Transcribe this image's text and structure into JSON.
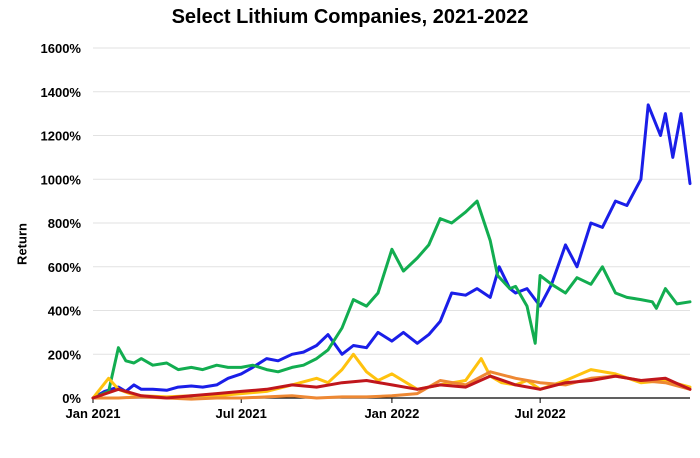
{
  "chart_data": {
    "type": "line",
    "title": "Select Lithium Companies, 2021-2022",
    "xlabel": "",
    "ylabel": "Return",
    "xlim": [
      "2021-01-01",
      "2022-12-31"
    ],
    "ylim": [
      0,
      1600
    ],
    "y_unit": "%",
    "y_ticks": [
      "0%",
      "200%",
      "400%",
      "600%",
      "800%",
      "1000%",
      "1200%",
      "1400%",
      "1600%"
    ],
    "x_ticks": [
      {
        "date": "2021-01-01",
        "label": "Jan 2021"
      },
      {
        "date": "2021-07-01",
        "label": "Jul 2021"
      },
      {
        "date": "2022-01-01",
        "label": "Jan 2022"
      },
      {
        "date": "2022-07-01",
        "label": "Jul 2022"
      }
    ],
    "grid": {
      "horizontal": true,
      "vertical": false
    },
    "legend": "none",
    "series": [
      {
        "color": "#1a1ee8",
        "x": [
          "2021-01-01",
          "2021-01-15",
          "2021-02-01",
          "2021-02-10",
          "2021-02-20",
          "2021-03-01",
          "2021-03-15",
          "2021-04-01",
          "2021-04-15",
          "2021-05-01",
          "2021-05-15",
          "2021-06-01",
          "2021-06-15",
          "2021-07-01",
          "2021-07-15",
          "2021-08-01",
          "2021-08-15",
          "2021-09-01",
          "2021-09-15",
          "2021-10-01",
          "2021-10-15",
          "2021-11-01",
          "2021-11-15",
          "2021-12-01",
          "2021-12-15",
          "2022-01-01",
          "2022-01-15",
          "2022-02-01",
          "2022-02-15",
          "2022-03-01",
          "2022-03-15",
          "2022-04-01",
          "2022-04-15",
          "2022-05-01",
          "2022-05-12",
          "2022-05-25",
          "2022-06-01",
          "2022-06-15",
          "2022-07-01",
          "2022-07-15",
          "2022-08-01",
          "2022-08-15",
          "2022-09-01",
          "2022-09-15",
          "2022-10-01",
          "2022-10-15",
          "2022-11-01",
          "2022-11-10",
          "2022-11-25",
          "2022-12-01",
          "2022-12-10",
          "2022-12-20",
          "2022-12-31"
        ],
        "y": [
          0,
          30,
          50,
          30,
          60,
          40,
          40,
          35,
          50,
          55,
          50,
          60,
          90,
          110,
          140,
          180,
          170,
          200,
          210,
          240,
          290,
          200,
          240,
          230,
          300,
          260,
          300,
          250,
          290,
          350,
          480,
          470,
          500,
          460,
          600,
          500,
          480,
          500,
          420,
          520,
          700,
          600,
          800,
          780,
          900,
          880,
          1000,
          1340,
          1200,
          1300,
          1100,
          1300,
          980
        ]
      },
      {
        "color": "#12ad50",
        "x": [
          "2021-01-01",
          "2021-01-20",
          "2021-02-01",
          "2021-02-10",
          "2021-02-20",
          "2021-03-01",
          "2021-03-15",
          "2021-04-01",
          "2021-04-15",
          "2021-05-01",
          "2021-05-15",
          "2021-06-01",
          "2021-06-15",
          "2021-07-01",
          "2021-07-15",
          "2021-08-01",
          "2021-08-15",
          "2021-09-01",
          "2021-09-15",
          "2021-10-01",
          "2021-10-15",
          "2021-11-01",
          "2021-11-15",
          "2021-12-01",
          "2021-12-15",
          "2022-01-01",
          "2022-01-15",
          "2022-02-01",
          "2022-02-15",
          "2022-03-01",
          "2022-03-15",
          "2022-04-01",
          "2022-04-15",
          "2022-05-01",
          "2022-05-10",
          "2022-05-25",
          "2022-06-01",
          "2022-06-15",
          "2022-06-25",
          "2022-07-01",
          "2022-07-15",
          "2022-08-01",
          "2022-08-15",
          "2022-09-01",
          "2022-09-15",
          "2022-10-01",
          "2022-10-15",
          "2022-11-01",
          "2022-11-15",
          "2022-11-20",
          "2022-12-01",
          "2022-12-15",
          "2022-12-31"
        ],
        "y": [
          0,
          30,
          230,
          170,
          160,
          180,
          150,
          160,
          130,
          140,
          130,
          150,
          140,
          140,
          150,
          130,
          120,
          140,
          150,
          180,
          220,
          320,
          450,
          420,
          480,
          680,
          580,
          640,
          700,
          820,
          800,
          850,
          900,
          720,
          560,
          500,
          510,
          420,
          250,
          560,
          520,
          480,
          550,
          520,
          600,
          480,
          460,
          450,
          440,
          410,
          500,
          430,
          440
        ]
      },
      {
        "color": "#ffc20e",
        "x": [
          "2021-01-01",
          "2021-01-20",
          "2021-02-01",
          "2021-02-15",
          "2021-03-01",
          "2021-04-01",
          "2021-05-01",
          "2021-06-01",
          "2021-07-01",
          "2021-08-01",
          "2021-09-01",
          "2021-10-01",
          "2021-10-15",
          "2021-11-01",
          "2021-11-15",
          "2021-12-01",
          "2021-12-15",
          "2022-01-01",
          "2022-02-01",
          "2022-03-01",
          "2022-04-01",
          "2022-04-20",
          "2022-05-01",
          "2022-05-15",
          "2022-06-01",
          "2022-06-15",
          "2022-07-01",
          "2022-08-01",
          "2022-09-01",
          "2022-10-01",
          "2022-11-01",
          "2022-12-01",
          "2022-12-31"
        ],
        "y": [
          0,
          90,
          40,
          20,
          10,
          5,
          10,
          10,
          20,
          30,
          60,
          90,
          70,
          130,
          200,
          120,
          80,
          110,
          40,
          60,
          80,
          180,
          100,
          70,
          60,
          80,
          40,
          80,
          130,
          110,
          70,
          80,
          50
        ]
      },
      {
        "color": "#ee8833",
        "x": [
          "2021-01-01",
          "2021-02-01",
          "2021-03-01",
          "2021-04-01",
          "2021-05-01",
          "2021-06-01",
          "2021-07-01",
          "2021-08-01",
          "2021-09-01",
          "2021-10-01",
          "2021-11-01",
          "2021-12-01",
          "2022-01-01",
          "2022-02-01",
          "2022-03-01",
          "2022-04-01",
          "2022-05-01",
          "2022-06-01",
          "2022-07-01",
          "2022-08-01",
          "2022-09-01",
          "2022-10-01",
          "2022-11-01",
          "2022-12-01",
          "2022-12-31"
        ],
        "y": [
          0,
          0,
          5,
          0,
          -5,
          0,
          0,
          5,
          10,
          0,
          5,
          5,
          10,
          20,
          80,
          60,
          120,
          90,
          70,
          60,
          90,
          100,
          80,
          70,
          40
        ]
      },
      {
        "color": "#c0161c",
        "x": [
          "2021-01-01",
          "2021-02-01",
          "2021-03-01",
          "2021-04-01",
          "2021-05-01",
          "2021-06-01",
          "2021-07-01",
          "2021-08-01",
          "2021-09-01",
          "2021-10-01",
          "2021-11-01",
          "2021-12-01",
          "2022-01-01",
          "2022-02-01",
          "2022-03-01",
          "2022-04-01",
          "2022-05-01",
          "2022-06-01",
          "2022-07-01",
          "2022-08-01",
          "2022-09-01",
          "2022-10-01",
          "2022-11-01",
          "2022-12-01",
          "2022-12-31"
        ],
        "y": [
          0,
          40,
          10,
          0,
          10,
          20,
          30,
          40,
          60,
          50,
          70,
          80,
          60,
          40,
          60,
          50,
          100,
          60,
          40,
          70,
          80,
          100,
          80,
          90,
          40
        ]
      }
    ]
  }
}
